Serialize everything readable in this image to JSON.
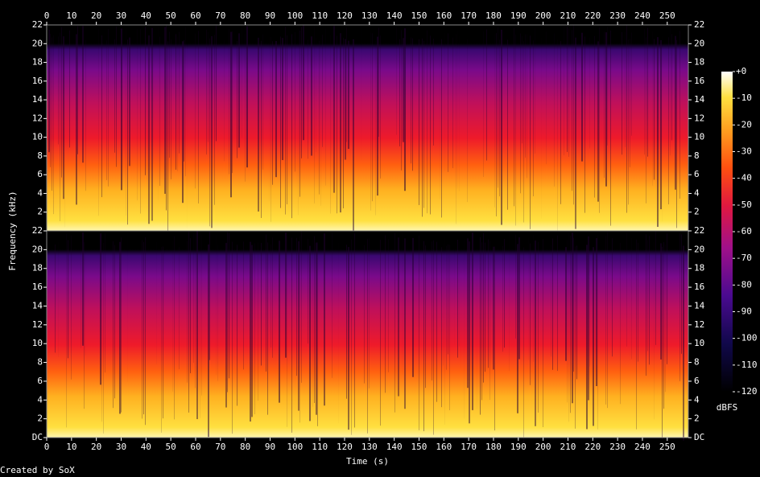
{
  "chart_data": [
    {
      "type": "spectrogram",
      "xlim": [
        0,
        258.5
      ],
      "xticks": [
        0,
        10,
        20,
        30,
        40,
        50,
        60,
        70,
        80,
        90,
        100,
        110,
        120,
        130,
        140,
        150,
        160,
        170,
        180,
        190,
        200,
        210,
        220,
        230,
        240,
        250
      ],
      "ylim": [
        0,
        22
      ],
      "yticks": [
        2,
        4,
        6,
        8,
        10,
        12,
        14,
        16,
        18,
        20,
        22
      ],
      "ylabel": "Frequency (kHz)"
    },
    {
      "type": "spectrogram",
      "xlim": [
        0,
        258.5
      ],
      "xticks": [
        0,
        10,
        20,
        30,
        40,
        50,
        60,
        70,
        80,
        90,
        100,
        110,
        120,
        130,
        140,
        150,
        160,
        170,
        180,
        190,
        200,
        210,
        220,
        230,
        240,
        250
      ],
      "ylim": [
        0,
        22
      ],
      "yticks": [
        {
          "value": 0,
          "label": "DC"
        },
        2,
        4,
        6,
        8,
        10,
        12,
        14,
        16,
        18,
        20,
        22
      ],
      "xlabel": "Time (s)"
    }
  ],
  "colorbar": {
    "label": "dBFS",
    "lim": [
      -120,
      0
    ],
    "ticks": [
      {
        "value": 0,
        "label": "+0"
      },
      -10,
      -20,
      -30,
      -40,
      -50,
      -60,
      -70,
      -80,
      -90,
      -100,
      -110,
      -120
    ]
  },
  "footer": "Created by SoX"
}
